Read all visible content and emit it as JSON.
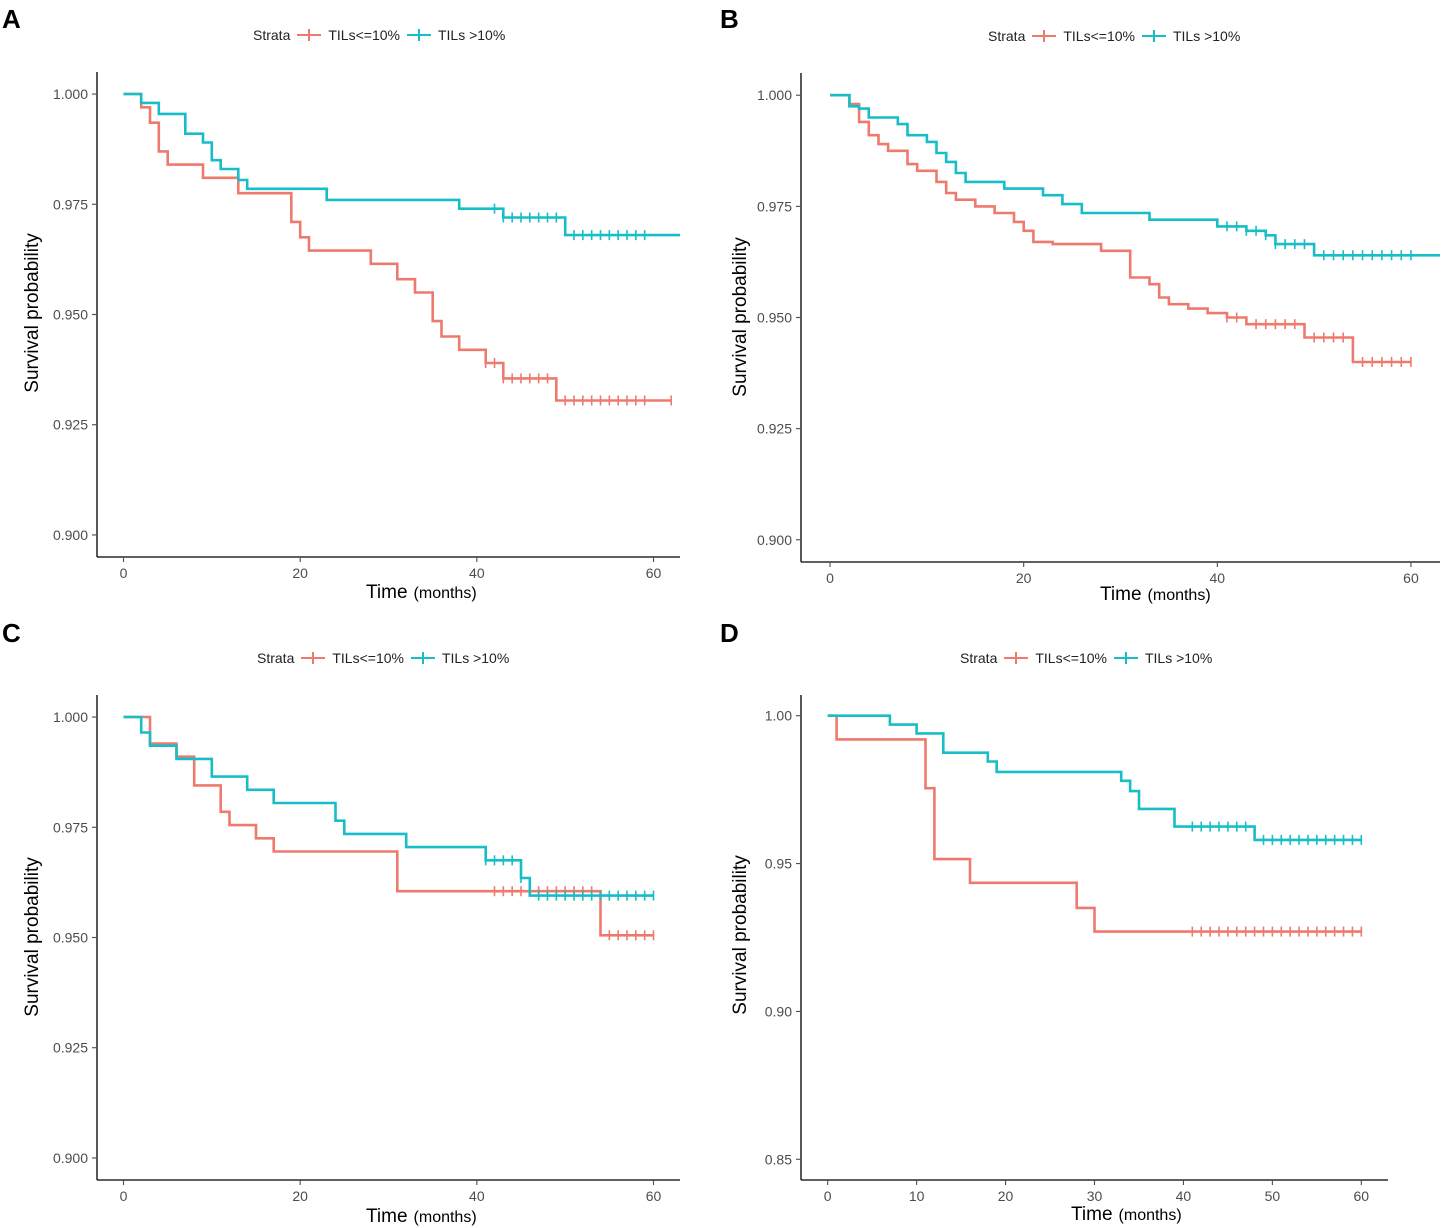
{
  "colors": {
    "low": "#EE7A6E",
    "high": "#17BDC7",
    "axis": "#000000",
    "tick_text": "#4D4D4D"
  },
  "chart_data": [
    {
      "panel": "A",
      "type": "line",
      "legend": {
        "title": "Strata",
        "entries": [
          "TILs<=10%",
          "TILs >10%"
        ]
      },
      "xlabel": "Time",
      "xunit": "(months)",
      "ylabel": "Survival probability",
      "xlim": [
        -3,
        63
      ],
      "ylim": [
        0.895,
        1.005
      ],
      "xticks": [
        0,
        20,
        40,
        60
      ],
      "xtick_labels": [
        "0",
        "20",
        "40",
        "60"
      ],
      "yticks": [
        0.9,
        0.925,
        0.95,
        0.975,
        1.0
      ],
      "ytick_labels": [
        "0.900",
        "0.925",
        "0.950",
        "0.975",
        "1.000"
      ],
      "series": [
        {
          "name": "TILs<=10%",
          "color_key": "low",
          "steps": [
            [
              0,
              1.0
            ],
            [
              2,
              0.997
            ],
            [
              3,
              0.9935
            ],
            [
              4,
              0.987
            ],
            [
              5,
              0.984
            ],
            [
              9,
              0.981
            ],
            [
              13,
              0.9775
            ],
            [
              19,
              0.971
            ],
            [
              20,
              0.9675
            ],
            [
              21,
              0.9645
            ],
            [
              28,
              0.9615
            ],
            [
              31,
              0.958
            ],
            [
              33,
              0.955
            ],
            [
              35,
              0.9485
            ],
            [
              36,
              0.945
            ],
            [
              38,
              0.942
            ],
            [
              41,
              0.939
            ],
            [
              43,
              0.9355
            ],
            [
              49,
              0.9305
            ]
          ],
          "end": 62,
          "censors": [
            41,
            42,
            43,
            44,
            45,
            46,
            47,
            48,
            50,
            51,
            52,
            53,
            54,
            55,
            56,
            57,
            58,
            59,
            62
          ]
        },
        {
          "name": "TILs >10%",
          "color_key": "high",
          "steps": [
            [
              0,
              1.0
            ],
            [
              2,
              0.998
            ],
            [
              4,
              0.9955
            ],
            [
              7,
              0.991
            ],
            [
              9,
              0.989
            ],
            [
              10,
              0.985
            ],
            [
              11,
              0.983
            ],
            [
              13,
              0.9805
            ],
            [
              14,
              0.9785
            ],
            [
              23,
              0.976
            ],
            [
              38,
              0.974
            ],
            [
              43,
              0.972
            ],
            [
              50,
              0.968
            ]
          ],
          "end": 63,
          "censors": [
            42,
            43,
            44,
            45,
            46,
            47,
            48,
            49,
            51,
            52,
            53,
            54,
            55,
            56,
            57,
            58,
            59
          ]
        }
      ]
    },
    {
      "panel": "B",
      "type": "line",
      "legend": {
        "title": "Strata",
        "entries": [
          "TILs<=10%",
          "TILs >10%"
        ]
      },
      "xlabel": "Time",
      "xunit": "(months)",
      "ylabel": "Survival probability",
      "xlim": [
        -3,
        63
      ],
      "ylim": [
        0.895,
        1.005
      ],
      "xticks": [
        0,
        20,
        40,
        60
      ],
      "xtick_labels": [
        "0",
        "20",
        "40",
        "60"
      ],
      "yticks": [
        0.9,
        0.925,
        0.95,
        0.975,
        1.0
      ],
      "ytick_labels": [
        "0.900",
        "0.925",
        "0.950",
        "0.975",
        "1.000"
      ],
      "series": [
        {
          "name": "TILs<=10%",
          "color_key": "low",
          "steps": [
            [
              0,
              1.0
            ],
            [
              2,
              0.998
            ],
            [
              3,
              0.994
            ],
            [
              4,
              0.991
            ],
            [
              5,
              0.989
            ],
            [
              6,
              0.9875
            ],
            [
              8,
              0.9845
            ],
            [
              9,
              0.983
            ],
            [
              11,
              0.9805
            ],
            [
              12,
              0.978
            ],
            [
              13,
              0.9765
            ],
            [
              15,
              0.975
            ],
            [
              17,
              0.9735
            ],
            [
              19,
              0.9715
            ],
            [
              20,
              0.9695
            ],
            [
              21,
              0.967
            ],
            [
              23,
              0.9665
            ],
            [
              28,
              0.965
            ],
            [
              31,
              0.959
            ],
            [
              33,
              0.9575
            ],
            [
              34,
              0.9545
            ],
            [
              35,
              0.953
            ],
            [
              37,
              0.952
            ],
            [
              39,
              0.951
            ],
            [
              41,
              0.95
            ],
            [
              43,
              0.9485
            ],
            [
              49,
              0.9455
            ],
            [
              54,
              0.94
            ]
          ],
          "end": 60,
          "censors": [
            41,
            42,
            44,
            45,
            46,
            47,
            48,
            50,
            51,
            52,
            53,
            55,
            56,
            57,
            58,
            59,
            60
          ]
        },
        {
          "name": "TILs >10%",
          "color_key": "high",
          "steps": [
            [
              0,
              1.0
            ],
            [
              2,
              0.9975
            ],
            [
              3,
              0.997
            ],
            [
              4,
              0.995
            ],
            [
              7,
              0.9935
            ],
            [
              8,
              0.991
            ],
            [
              10,
              0.9895
            ],
            [
              11,
              0.987
            ],
            [
              12,
              0.985
            ],
            [
              13,
              0.9825
            ],
            [
              14,
              0.9805
            ],
            [
              18,
              0.979
            ],
            [
              22,
              0.9775
            ],
            [
              24,
              0.9755
            ],
            [
              26,
              0.9735
            ],
            [
              33,
              0.972
            ],
            [
              40,
              0.9705
            ],
            [
              43,
              0.9695
            ],
            [
              45,
              0.9685
            ],
            [
              46,
              0.9665
            ],
            [
              50,
              0.964
            ]
          ],
          "end": 63,
          "censors": [
            41,
            42,
            43,
            44,
            45,
            46,
            47,
            48,
            49,
            51,
            52,
            53,
            54,
            55,
            56,
            57,
            58,
            59,
            60
          ]
        }
      ]
    },
    {
      "panel": "C",
      "type": "line",
      "legend": {
        "title": "Strata",
        "entries": [
          "TILs<=10%",
          "TILs >10%"
        ]
      },
      "xlabel": "Time",
      "xunit": "(months)",
      "ylabel": "Survival probability",
      "xlim": [
        -3,
        63
      ],
      "ylim": [
        0.895,
        1.005
      ],
      "xticks": [
        0,
        20,
        40,
        60
      ],
      "xtick_labels": [
        "0",
        "20",
        "40",
        "60"
      ],
      "yticks": [
        0.9,
        0.925,
        0.95,
        0.975,
        1.0
      ],
      "ytick_labels": [
        "0.900",
        "0.925",
        "0.950",
        "0.975",
        "1.000"
      ],
      "series": [
        {
          "name": "TILs<=10%",
          "color_key": "low",
          "steps": [
            [
              0,
              1.0
            ],
            [
              3,
              0.994
            ],
            [
              6,
              0.991
            ],
            [
              8,
              0.9845
            ],
            [
              11,
              0.9785
            ],
            [
              12,
              0.9755
            ],
            [
              15,
              0.9725
            ],
            [
              17,
              0.9695
            ],
            [
              31,
              0.9605
            ],
            [
              54,
              0.9505
            ]
          ],
          "end": 60,
          "censors": [
            42,
            43,
            44,
            45,
            46,
            47,
            48,
            49,
            50,
            51,
            52,
            53,
            55,
            56,
            57,
            58,
            59,
            60
          ]
        },
        {
          "name": "TILs >10%",
          "color_key": "high",
          "steps": [
            [
              0,
              1.0
            ],
            [
              2,
              0.9965
            ],
            [
              3,
              0.9935
            ],
            [
              6,
              0.9905
            ],
            [
              10,
              0.9865
            ],
            [
              14,
              0.9835
            ],
            [
              17,
              0.9805
            ],
            [
              24,
              0.9765
            ],
            [
              25,
              0.9735
            ],
            [
              32,
              0.9705
            ],
            [
              41,
              0.9675
            ],
            [
              45,
              0.9635
            ],
            [
              46,
              0.9595
            ]
          ],
          "end": 60,
          "censors": [
            41,
            42,
            43,
            44,
            45,
            47,
            48,
            49,
            50,
            51,
            52,
            53,
            54,
            55,
            56,
            57,
            58,
            59,
            60
          ]
        }
      ]
    },
    {
      "panel": "D",
      "type": "line",
      "legend": {
        "title": "Strata",
        "entries": [
          "TILs<=10%",
          "TILs >10%"
        ]
      },
      "xlabel": "Time",
      "xunit": "(months)",
      "ylabel": "Survival probability",
      "xlim": [
        -3,
        63
      ],
      "ylim": [
        0.843,
        1.007
      ],
      "xticks": [
        0,
        10,
        20,
        30,
        40,
        50,
        60
      ],
      "xtick_labels": [
        "0",
        "10",
        "20",
        "30",
        "40",
        "50",
        "60"
      ],
      "yticks": [
        0.85,
        0.9,
        0.95,
        1.0
      ],
      "ytick_labels": [
        "0.85",
        "0.90",
        "0.95",
        "1.00"
      ],
      "series": [
        {
          "name": "TILs<=10%",
          "color_key": "low",
          "steps": [
            [
              0,
              1.0
            ],
            [
              1,
              0.992
            ],
            [
              11,
              0.9755
            ],
            [
              12,
              0.9515
            ],
            [
              16,
              0.9435
            ],
            [
              28,
              0.935
            ],
            [
              30,
              0.927
            ]
          ],
          "end": 60,
          "censors": [
            41,
            42,
            43,
            44,
            45,
            46,
            47,
            48,
            49,
            50,
            51,
            52,
            53,
            54,
            55,
            56,
            57,
            58,
            59,
            60
          ]
        },
        {
          "name": "TILs >10%",
          "color_key": "high",
          "steps": [
            [
              0,
              1.0
            ],
            [
              7,
              0.997
            ],
            [
              10,
              0.994
            ],
            [
              13,
              0.9875
            ],
            [
              18,
              0.9845
            ],
            [
              19,
              0.981
            ],
            [
              33,
              0.978
            ],
            [
              34,
              0.9745
            ],
            [
              35,
              0.9685
            ],
            [
              39,
              0.9625
            ],
            [
              48,
              0.958
            ]
          ],
          "end": 60,
          "censors": [
            41,
            42,
            43,
            44,
            45,
            46,
            47,
            49,
            50,
            51,
            52,
            53,
            54,
            55,
            56,
            57,
            58,
            59,
            60
          ]
        }
      ]
    }
  ]
}
